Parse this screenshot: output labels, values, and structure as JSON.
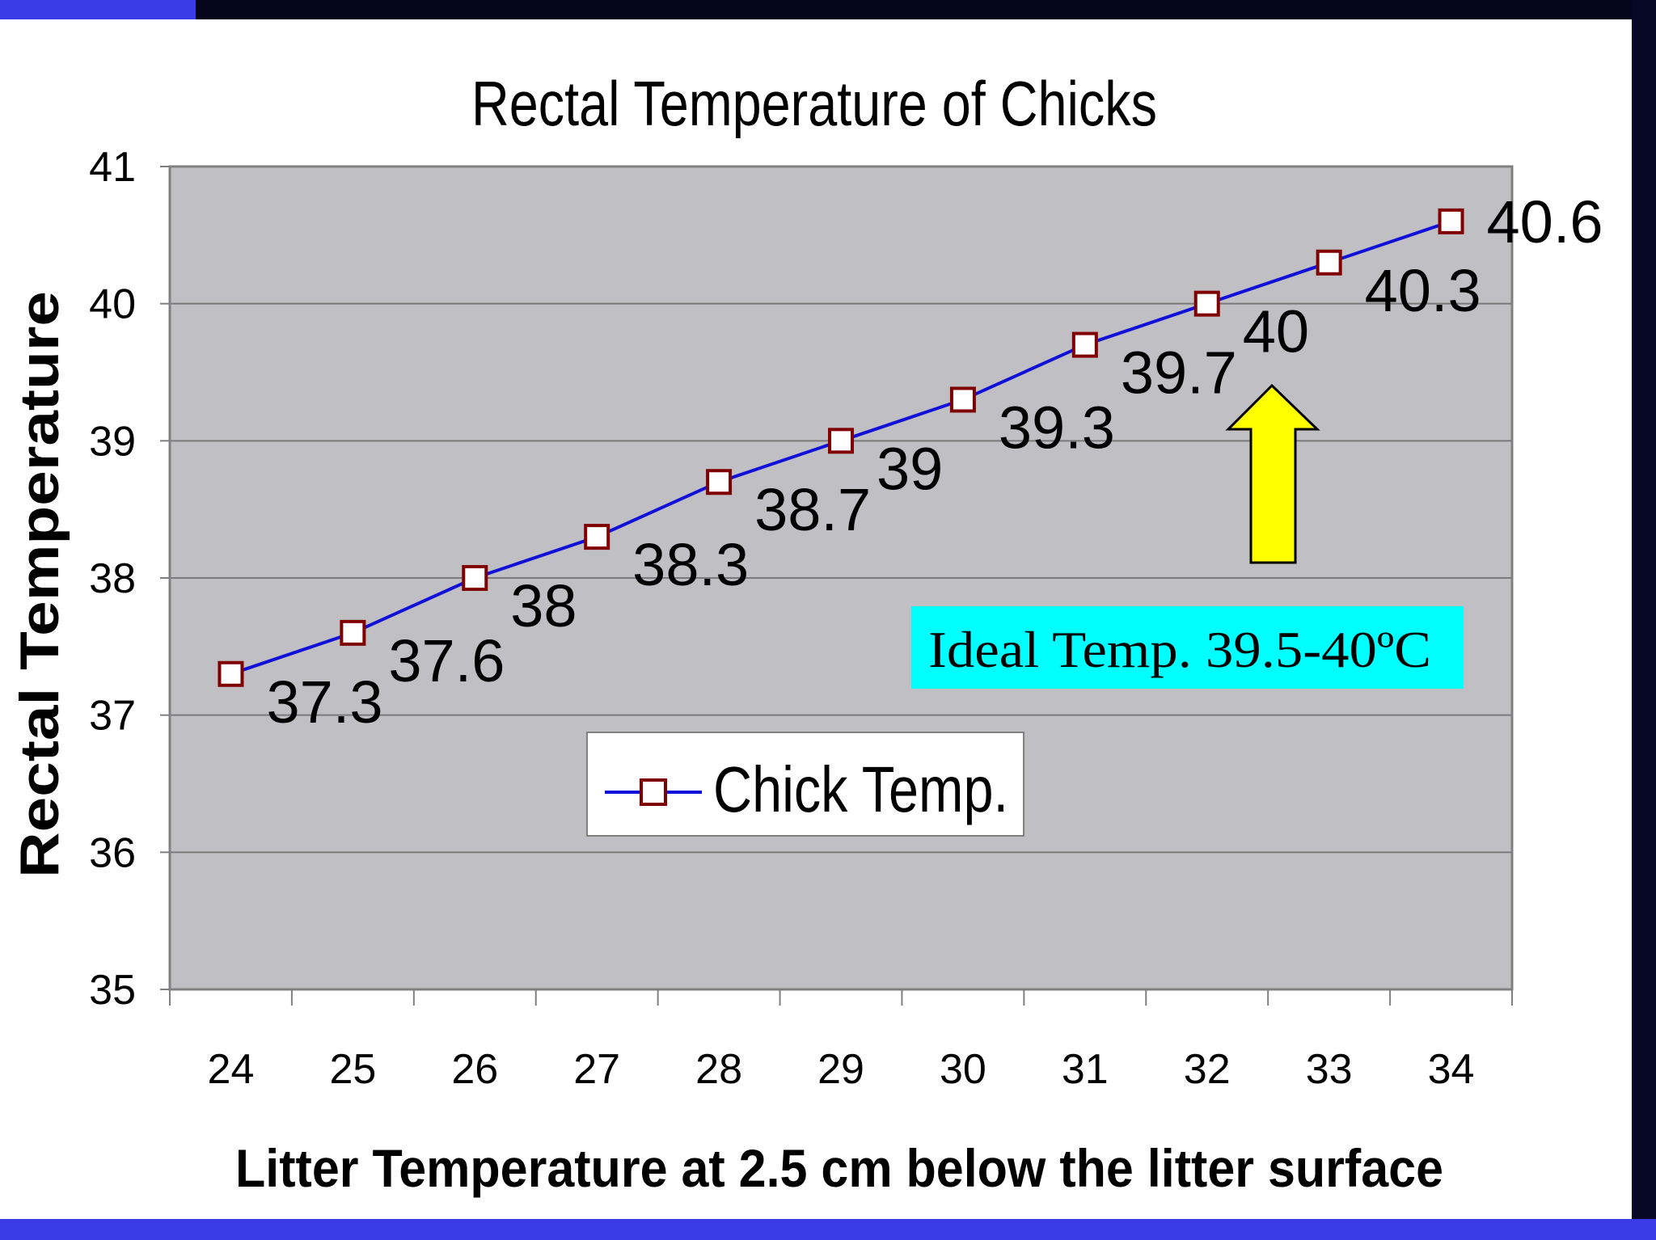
{
  "colors": {
    "frame_dark": "#05051e",
    "frame_blue": "#3a3ae6",
    "plot_bg": "#c0bfc4",
    "line": "#1010d8",
    "marker_edge": "#800000",
    "annotation_bg": "#00ffff",
    "arrow_fill": "#ffff00"
  },
  "chart_data": {
    "type": "line",
    "title": "Rectal Temperature of Chicks",
    "xlabel": "Litter Temperature at 2.5 cm below the litter surface",
    "ylabel": "Rectal Temperature",
    "ylim": [
      35,
      41
    ],
    "yticks": [
      "35",
      "36",
      "37",
      "38",
      "39",
      "40",
      "41"
    ],
    "categories": [
      "24",
      "25",
      "26",
      "27",
      "28",
      "29",
      "30",
      "31",
      "32",
      "33",
      "34"
    ],
    "series": [
      {
        "name": "Chick Temp.",
        "values": [
          37.3,
          37.6,
          38,
          38.3,
          38.7,
          39,
          39.3,
          39.7,
          40,
          40.3,
          40.6
        ],
        "labels": [
          "37.3",
          "37.6",
          "38",
          "38.3",
          "38.7",
          "39",
          "39.3",
          "39.7",
          "40",
          "40.3",
          "40.6"
        ]
      }
    ],
    "grid": true,
    "legend_position": "bottom-center",
    "annotation": "Ideal Temp. 39.5-40ºC",
    "arrow": {
      "direction": "up",
      "icon": "up-arrow-icon"
    }
  }
}
